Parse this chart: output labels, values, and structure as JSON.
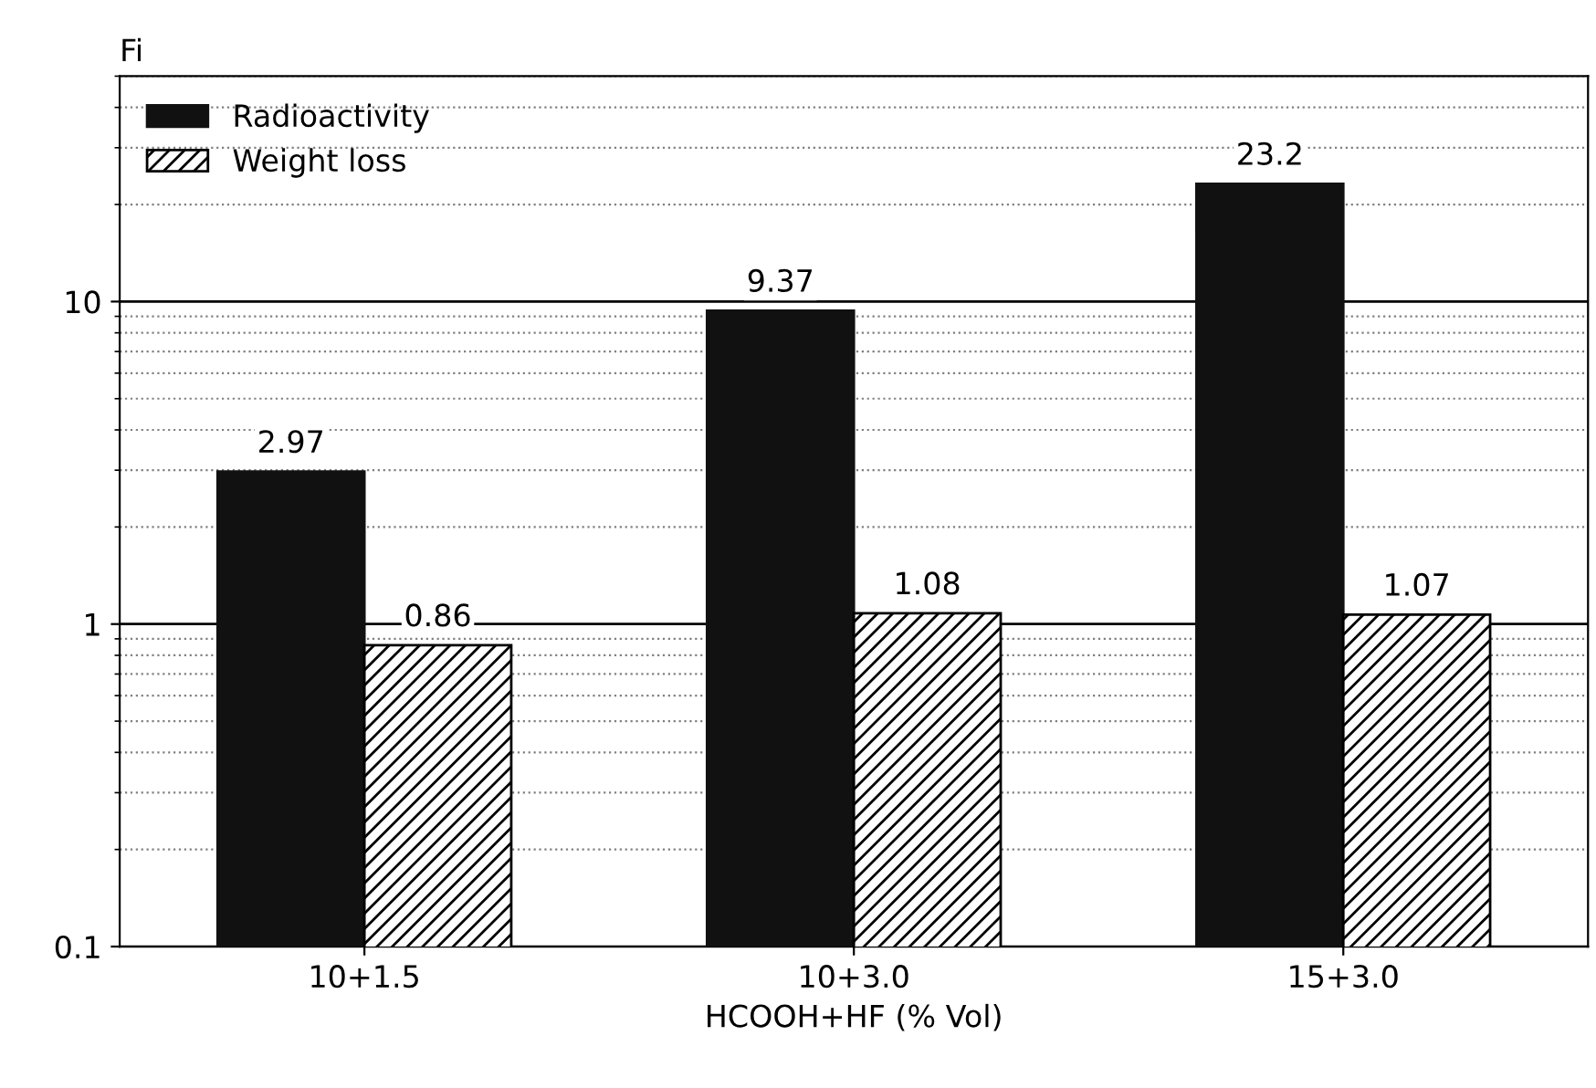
{
  "chart_data": {
    "type": "bar",
    "xlabel": "HCOOH+HF (% Vol)",
    "ylabel": "Fi",
    "categories": [
      "10+1.5",
      "10+3.0",
      "15+3.0"
    ],
    "series": [
      {
        "name": "Radioactivity",
        "color": "#111111",
        "values": [
          2.97,
          9.37,
          23.2
        ]
      },
      {
        "name": "Weight loss",
        "color": "#000000",
        "values": [
          0.86,
          1.08,
          1.07
        ]
      }
    ],
    "log": true,
    "ylim": [
      0.1,
      50
    ],
    "yticks": [
      0.1,
      1,
      10
    ],
    "grid": "y",
    "legend": "top left",
    "data_labels": true
  }
}
